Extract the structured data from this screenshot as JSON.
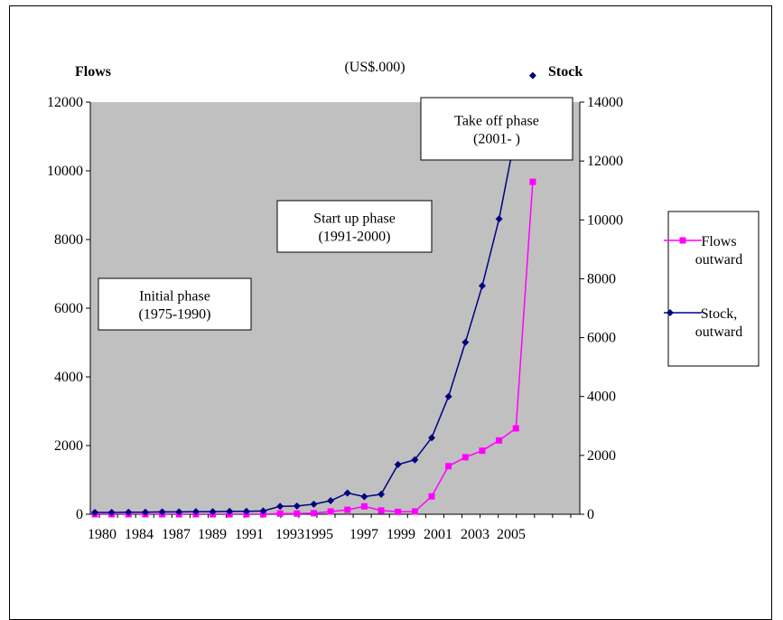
{
  "chart_data": {
    "type": "line",
    "unit_label": "(US$.000)",
    "left_axis_title": "Flows",
    "right_axis_title": "Stock",
    "y_left": {
      "min": 0,
      "max": 12000,
      "ticks": [
        "0",
        "2000",
        "4000",
        "6000",
        "8000",
        "10000",
        "12000"
      ]
    },
    "y_right": {
      "min": 0,
      "max": 14000,
      "ticks": [
        "0",
        "2000",
        "4000",
        "6000",
        "8000",
        "10000",
        "12000",
        "14000"
      ]
    },
    "x": [
      1980,
      1981,
      1982,
      1983,
      1984,
      1985,
      1986,
      1987,
      1988,
      1989,
      1990,
      1991,
      1992,
      1993,
      1994,
      1995,
      1996,
      1997,
      1998,
      1999,
      2000,
      2001,
      2002,
      2003,
      2004,
      2005,
      2006
    ],
    "x_tick_labels": [
      "1980",
      "1984",
      "1987",
      "1989",
      "1991",
      "19931995",
      "1997",
      "1999",
      "2001",
      "2003",
      "2005"
    ],
    "plot_background": "#c0c0c0",
    "series": [
      {
        "name": "Flows outward",
        "axis": "left",
        "color": "#ff00ff",
        "marker": "square",
        "values": [
          0,
          0,
          0,
          0,
          0,
          0,
          0,
          0,
          0,
          0,
          0,
          20,
          20,
          30,
          80,
          130,
          230,
          110,
          70,
          80,
          520,
          1400,
          1660,
          1850,
          2150,
          2500,
          9680
        ]
      },
      {
        "name": "Stock, outward",
        "axis": "right",
        "color": "#000080",
        "marker": "diamond",
        "values": [
          60,
          60,
          70,
          70,
          80,
          80,
          90,
          90,
          100,
          100,
          110,
          270,
          280,
          340,
          460,
          720,
          600,
          680,
          1690,
          1850,
          2600,
          4000,
          5840,
          7760,
          10030,
          12970,
          14900
        ]
      }
    ],
    "annotations": [
      {
        "lines": [
          "Initial phase",
          "(1975-1990)"
        ]
      },
      {
        "lines": [
          "Start up phase",
          "(1991-2000)"
        ]
      },
      {
        "lines": [
          "Take off phase",
          "(2001-  )"
        ]
      }
    ],
    "legend": {
      "position": "right",
      "entries": [
        {
          "lines": [
            "Flows",
            "outward"
          ]
        },
        {
          "lines": [
            "Stock,",
            "outward"
          ]
        }
      ]
    }
  }
}
